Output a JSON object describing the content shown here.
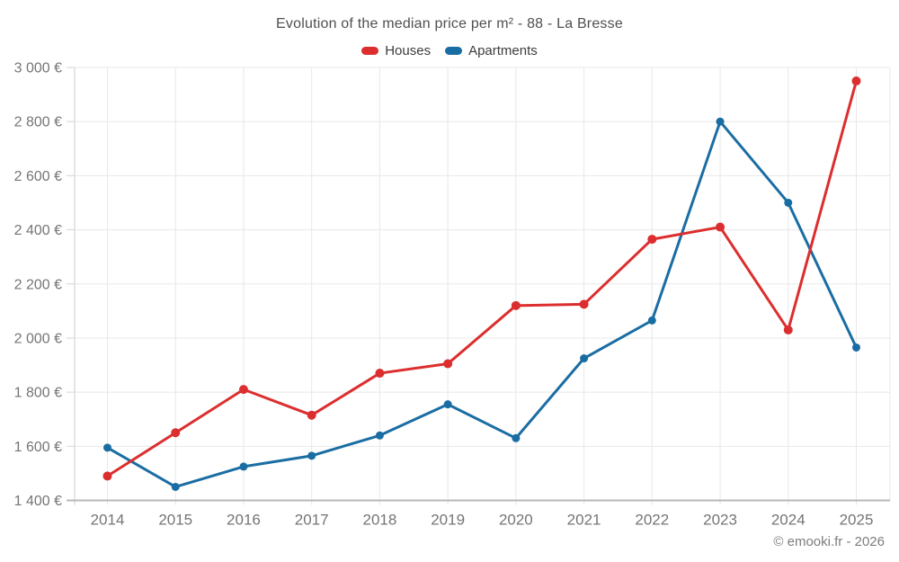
{
  "chart_data": {
    "type": "line",
    "title": "Evolution of the median price per m² - 88 - La Bresse",
    "x": [
      "2014",
      "2015",
      "2016",
      "2017",
      "2018",
      "2019",
      "2020",
      "2021",
      "2022",
      "2023",
      "2024",
      "2025"
    ],
    "ylim": [
      1400,
      3000
    ],
    "yticks": [
      {
        "value": 1400,
        "label": "1 400 €"
      },
      {
        "value": 1600,
        "label": "1 600 €"
      },
      {
        "value": 1800,
        "label": "1 800 €"
      },
      {
        "value": 2000,
        "label": "2 000 €"
      },
      {
        "value": 2200,
        "label": "2 200 €"
      },
      {
        "value": 2400,
        "label": "2 400 €"
      },
      {
        "value": 2600,
        "label": "2 600 €"
      },
      {
        "value": 2800,
        "label": "2 800 €"
      },
      {
        "value": 3000,
        "label": "3 000 €"
      }
    ],
    "series": [
      {
        "name": "Houses",
        "color": "#dc2e2e",
        "marker_radius": 5,
        "values": [
          1490,
          1650,
          1810,
          1715,
          1870,
          1905,
          2120,
          2125,
          2365,
          2410,
          2030,
          2950
        ]
      },
      {
        "name": "Apartments",
        "color": "#1a6da3",
        "marker_radius": 4.5,
        "values": [
          1595,
          1450,
          1525,
          1565,
          1640,
          1755,
          1630,
          1925,
          2065,
          2800,
          2500,
          1965
        ]
      }
    ],
    "grid": true,
    "legend_position": "top"
  },
  "footer": {
    "copyright": "© emooki.fr - 2026"
  },
  "colors": {
    "grid": "#e8e8e8",
    "axis": "#b8b8b8",
    "tick": "#d5d5d5",
    "label": "#757575"
  }
}
